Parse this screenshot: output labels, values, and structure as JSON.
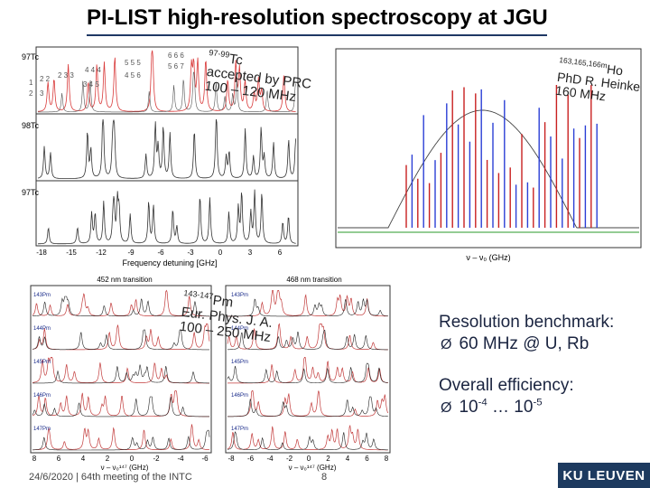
{
  "slide": {
    "title": "PI-LIST high-resolution spectroscopy at JGU",
    "footer": "24/6/2020 | 64th meeting of the INTC",
    "page_number": "8",
    "logo": "KU LEUVEN"
  },
  "tc_panel": {
    "labels": [
      "97Tc",
      "98Tc",
      "97Tc"
    ],
    "xlabel": "Frequency detuning [GHz]",
    "ticks": [
      "-18",
      "-15",
      "-12",
      "-9",
      "-6",
      "-3",
      "0",
      "3",
      "6"
    ],
    "level_labels": [
      "1",
      "2",
      "2 2",
      "3",
      "2 3 3",
      "4 4 4",
      "3 4 5",
      "5 5 5",
      "4 5 6",
      "6 6 6",
      "5 6 7"
    ],
    "note": {
      "sup": "97-99",
      "element": "Tc",
      "line1": "accepted by PRC",
      "line2": "100 – 120 MHz"
    }
  },
  "ho_panel": {
    "xlabel": "ν – ν₀ (GHz)",
    "note": {
      "sup": "163,165,166m",
      "element": "Ho",
      "line1": "PhD R. Heinke",
      "line2": "160 MHz"
    }
  },
  "pm_panel": {
    "left_header": "452 nm transition",
    "right_header": "468 nm transition",
    "labels": [
      "143Pm",
      "144Pm",
      "145Pm",
      "146Pm",
      "147Pm"
    ],
    "xlabel": "ν – ν₀¹⁴⁷ (GHz)",
    "left_ticks": [
      "8",
      "6",
      "4",
      "2",
      "0",
      "-2",
      "-4",
      "-6"
    ],
    "right_ticks": [
      "-8",
      "-6",
      "-4",
      "-2",
      "0",
      "2",
      "4",
      "6",
      "8"
    ],
    "note": {
      "sup": "143-147",
      "element": "Pm",
      "line1": "Eur. Phys. J. A.",
      "line2": "100 – 250 MHz"
    }
  },
  "benchmark": {
    "heading": "Resolution benchmark:",
    "item": "60 MHz @ U, Rb",
    "efficiency_heading": "Overall efficiency:",
    "eff_prefix": "10",
    "eff_exp1": "-4",
    "eff_mid": " … 10",
    "eff_exp2": "-5",
    "bullet_symbol": "Ø"
  }
}
